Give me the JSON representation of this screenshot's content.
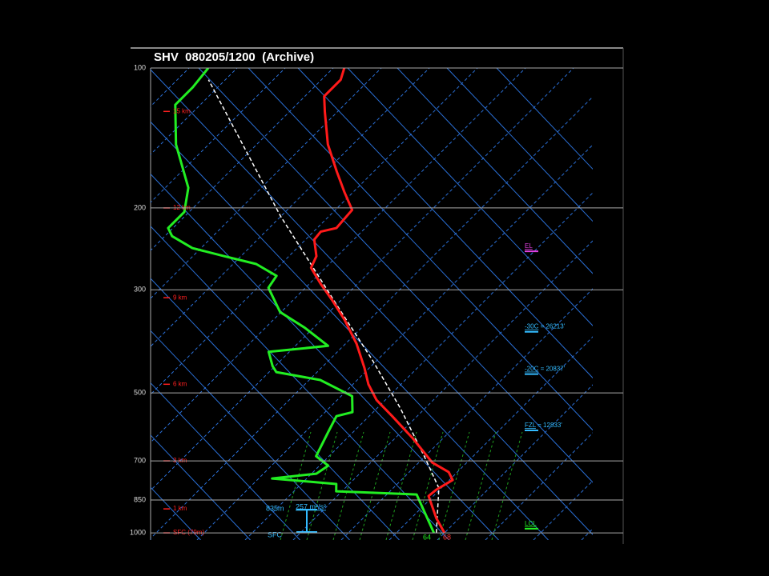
{
  "chart_data": {
    "type": "skewt",
    "title": "SHV  080205/1200  (Archive)",
    "ylim": [
      1036,
      100
    ],
    "log_scale": true,
    "yticks": [
      100,
      200,
      300,
      500,
      700,
      850,
      1000
    ],
    "temperature": {
      "color": "#ff1a1a",
      "pressure": [
        1000,
        931,
        833,
        807,
        770,
        740,
        706,
        626,
        561,
        518,
        479,
        442,
        392,
        348,
        316,
        291,
        269,
        254,
        234,
        225,
        221,
        202,
        185,
        167,
        146,
        124,
        115,
        106,
        100
      ],
      "values": [
        20,
        15.3,
        9,
        9.3,
        10.7,
        8.2,
        2.8,
        -6.3,
        -15.2,
        -21.8,
        -26.8,
        -31,
        -37.7,
        -45.2,
        -51.8,
        -57.7,
        -63,
        -64.3,
        -68.2,
        -68.5,
        -66,
        -66.5,
        -71.8,
        -77.7,
        -85.2,
        -92.7,
        -96,
        -96,
        -97.7
      ]
    },
    "dewpoint": {
      "color": "#22ee22",
      "pressure": [
        1000,
        827,
        814,
        785,
        764,
        746,
        717,
        684,
        607,
        561,
        550,
        508,
        469,
        451,
        438,
        408,
        396,
        362,
        335,
        297,
        280,
        264,
        254,
        244,
        230,
        221,
        204,
        181,
        146,
        120,
        110,
        100
      ],
      "values": [
        17.8,
        6.2,
        -11.2,
        -12.7,
        -27.2,
        -19,
        -18.2,
        -22.7,
        -25.2,
        -26.8,
        -24.3,
        -27.7,
        -37.7,
        -48.5,
        -50.5,
        -54.3,
        -43.2,
        -51.8,
        -60.2,
        -67.7,
        -68.5,
        -75.2,
        -83.5,
        -91.8,
        -98.5,
        -101,
        -101,
        -105.2,
        -116.8,
        -125.2,
        -125.2,
        -126
      ]
    },
    "parcel": {
      "color": "#ffffff",
      "pressure": [
        1000,
        801,
        684,
        539,
        425,
        322,
        208,
        106
      ],
      "values": [
        18.3,
        9.5,
        -0.2,
        -15.2,
        -31,
        -50.2,
        -80.2,
        -123.5
      ]
    },
    "height_labels": [
      {
        "label": "SFC (79m)",
        "pressure": 1000
      },
      {
        "label": "1 km",
        "pressure": 888
      },
      {
        "label": "3 km",
        "pressure": 700
      },
      {
        "label": "6 km",
        "pressure": 479
      },
      {
        "label": "9 km",
        "pressure": 312
      },
      {
        "label": "12 km",
        "pressure": 200
      },
      {
        "label": "15 km",
        "pressure": 124
      }
    ],
    "levels": [
      {
        "label": "EL",
        "color": "#e040e0",
        "pressure": 245
      },
      {
        "label": "-30C",
        "text": " = 26213'",
        "color": "#33bbff",
        "pressure": 365
      },
      {
        "label": "-20C",
        "text": " = 20837'",
        "color": "#33bbff",
        "pressure": 450
      },
      {
        "label": "FZL",
        "text": " = 12833'",
        "color": "#33bbff",
        "pressure": 595
      },
      {
        "label": "LCL",
        "color": "#22ee22",
        "pressure": 968
      }
    ],
    "surface_dewpoint": 64,
    "surface_temperature": 68,
    "helicity_depth": "835m",
    "helicity": "257 m²/s²",
    "helicity_base": "SFC"
  }
}
